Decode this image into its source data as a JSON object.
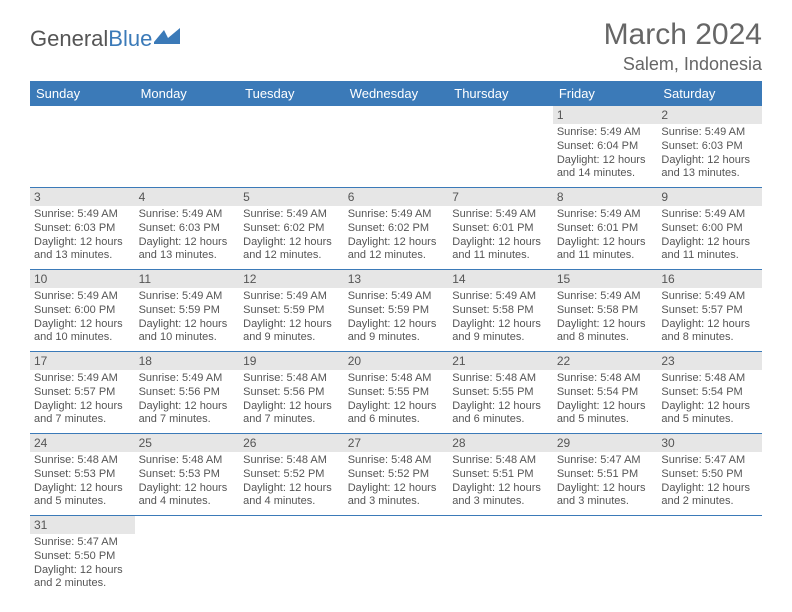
{
  "brand": {
    "part1": "General",
    "part2": "Blue"
  },
  "title": "March 2024",
  "location": "Salem, Indonesia",
  "colors": {
    "accent": "#3b7ab8",
    "daynum_bg": "#e6e6e6",
    "text": "#555555",
    "bg": "#ffffff"
  },
  "weekdays": [
    "Sunday",
    "Monday",
    "Tuesday",
    "Wednesday",
    "Thursday",
    "Friday",
    "Saturday"
  ],
  "weeks": [
    [
      null,
      null,
      null,
      null,
      null,
      {
        "day": "1",
        "sunrise": "Sunrise: 5:49 AM",
        "sunset": "Sunset: 6:04 PM",
        "daylight1": "Daylight: 12 hours",
        "daylight2": "and 14 minutes."
      },
      {
        "day": "2",
        "sunrise": "Sunrise: 5:49 AM",
        "sunset": "Sunset: 6:03 PM",
        "daylight1": "Daylight: 12 hours",
        "daylight2": "and 13 minutes."
      }
    ],
    [
      {
        "day": "3",
        "sunrise": "Sunrise: 5:49 AM",
        "sunset": "Sunset: 6:03 PM",
        "daylight1": "Daylight: 12 hours",
        "daylight2": "and 13 minutes."
      },
      {
        "day": "4",
        "sunrise": "Sunrise: 5:49 AM",
        "sunset": "Sunset: 6:03 PM",
        "daylight1": "Daylight: 12 hours",
        "daylight2": "and 13 minutes."
      },
      {
        "day": "5",
        "sunrise": "Sunrise: 5:49 AM",
        "sunset": "Sunset: 6:02 PM",
        "daylight1": "Daylight: 12 hours",
        "daylight2": "and 12 minutes."
      },
      {
        "day": "6",
        "sunrise": "Sunrise: 5:49 AM",
        "sunset": "Sunset: 6:02 PM",
        "daylight1": "Daylight: 12 hours",
        "daylight2": "and 12 minutes."
      },
      {
        "day": "7",
        "sunrise": "Sunrise: 5:49 AM",
        "sunset": "Sunset: 6:01 PM",
        "daylight1": "Daylight: 12 hours",
        "daylight2": "and 11 minutes."
      },
      {
        "day": "8",
        "sunrise": "Sunrise: 5:49 AM",
        "sunset": "Sunset: 6:01 PM",
        "daylight1": "Daylight: 12 hours",
        "daylight2": "and 11 minutes."
      },
      {
        "day": "9",
        "sunrise": "Sunrise: 5:49 AM",
        "sunset": "Sunset: 6:00 PM",
        "daylight1": "Daylight: 12 hours",
        "daylight2": "and 11 minutes."
      }
    ],
    [
      {
        "day": "10",
        "sunrise": "Sunrise: 5:49 AM",
        "sunset": "Sunset: 6:00 PM",
        "daylight1": "Daylight: 12 hours",
        "daylight2": "and 10 minutes."
      },
      {
        "day": "11",
        "sunrise": "Sunrise: 5:49 AM",
        "sunset": "Sunset: 5:59 PM",
        "daylight1": "Daylight: 12 hours",
        "daylight2": "and 10 minutes."
      },
      {
        "day": "12",
        "sunrise": "Sunrise: 5:49 AM",
        "sunset": "Sunset: 5:59 PM",
        "daylight1": "Daylight: 12 hours",
        "daylight2": "and 9 minutes."
      },
      {
        "day": "13",
        "sunrise": "Sunrise: 5:49 AM",
        "sunset": "Sunset: 5:59 PM",
        "daylight1": "Daylight: 12 hours",
        "daylight2": "and 9 minutes."
      },
      {
        "day": "14",
        "sunrise": "Sunrise: 5:49 AM",
        "sunset": "Sunset: 5:58 PM",
        "daylight1": "Daylight: 12 hours",
        "daylight2": "and 9 minutes."
      },
      {
        "day": "15",
        "sunrise": "Sunrise: 5:49 AM",
        "sunset": "Sunset: 5:58 PM",
        "daylight1": "Daylight: 12 hours",
        "daylight2": "and 8 minutes."
      },
      {
        "day": "16",
        "sunrise": "Sunrise: 5:49 AM",
        "sunset": "Sunset: 5:57 PM",
        "daylight1": "Daylight: 12 hours",
        "daylight2": "and 8 minutes."
      }
    ],
    [
      {
        "day": "17",
        "sunrise": "Sunrise: 5:49 AM",
        "sunset": "Sunset: 5:57 PM",
        "daylight1": "Daylight: 12 hours",
        "daylight2": "and 7 minutes."
      },
      {
        "day": "18",
        "sunrise": "Sunrise: 5:49 AM",
        "sunset": "Sunset: 5:56 PM",
        "daylight1": "Daylight: 12 hours",
        "daylight2": "and 7 minutes."
      },
      {
        "day": "19",
        "sunrise": "Sunrise: 5:48 AM",
        "sunset": "Sunset: 5:56 PM",
        "daylight1": "Daylight: 12 hours",
        "daylight2": "and 7 minutes."
      },
      {
        "day": "20",
        "sunrise": "Sunrise: 5:48 AM",
        "sunset": "Sunset: 5:55 PM",
        "daylight1": "Daylight: 12 hours",
        "daylight2": "and 6 minutes."
      },
      {
        "day": "21",
        "sunrise": "Sunrise: 5:48 AM",
        "sunset": "Sunset: 5:55 PM",
        "daylight1": "Daylight: 12 hours",
        "daylight2": "and 6 minutes."
      },
      {
        "day": "22",
        "sunrise": "Sunrise: 5:48 AM",
        "sunset": "Sunset: 5:54 PM",
        "daylight1": "Daylight: 12 hours",
        "daylight2": "and 5 minutes."
      },
      {
        "day": "23",
        "sunrise": "Sunrise: 5:48 AM",
        "sunset": "Sunset: 5:54 PM",
        "daylight1": "Daylight: 12 hours",
        "daylight2": "and 5 minutes."
      }
    ],
    [
      {
        "day": "24",
        "sunrise": "Sunrise: 5:48 AM",
        "sunset": "Sunset: 5:53 PM",
        "daylight1": "Daylight: 12 hours",
        "daylight2": "and 5 minutes."
      },
      {
        "day": "25",
        "sunrise": "Sunrise: 5:48 AM",
        "sunset": "Sunset: 5:53 PM",
        "daylight1": "Daylight: 12 hours",
        "daylight2": "and 4 minutes."
      },
      {
        "day": "26",
        "sunrise": "Sunrise: 5:48 AM",
        "sunset": "Sunset: 5:52 PM",
        "daylight1": "Daylight: 12 hours",
        "daylight2": "and 4 minutes."
      },
      {
        "day": "27",
        "sunrise": "Sunrise: 5:48 AM",
        "sunset": "Sunset: 5:52 PM",
        "daylight1": "Daylight: 12 hours",
        "daylight2": "and 3 minutes."
      },
      {
        "day": "28",
        "sunrise": "Sunrise: 5:48 AM",
        "sunset": "Sunset: 5:51 PM",
        "daylight1": "Daylight: 12 hours",
        "daylight2": "and 3 minutes."
      },
      {
        "day": "29",
        "sunrise": "Sunrise: 5:47 AM",
        "sunset": "Sunset: 5:51 PM",
        "daylight1": "Daylight: 12 hours",
        "daylight2": "and 3 minutes."
      },
      {
        "day": "30",
        "sunrise": "Sunrise: 5:47 AM",
        "sunset": "Sunset: 5:50 PM",
        "daylight1": "Daylight: 12 hours",
        "daylight2": "and 2 minutes."
      }
    ],
    [
      {
        "day": "31",
        "sunrise": "Sunrise: 5:47 AM",
        "sunset": "Sunset: 5:50 PM",
        "daylight1": "Daylight: 12 hours",
        "daylight2": "and 2 minutes."
      },
      null,
      null,
      null,
      null,
      null,
      null
    ]
  ]
}
